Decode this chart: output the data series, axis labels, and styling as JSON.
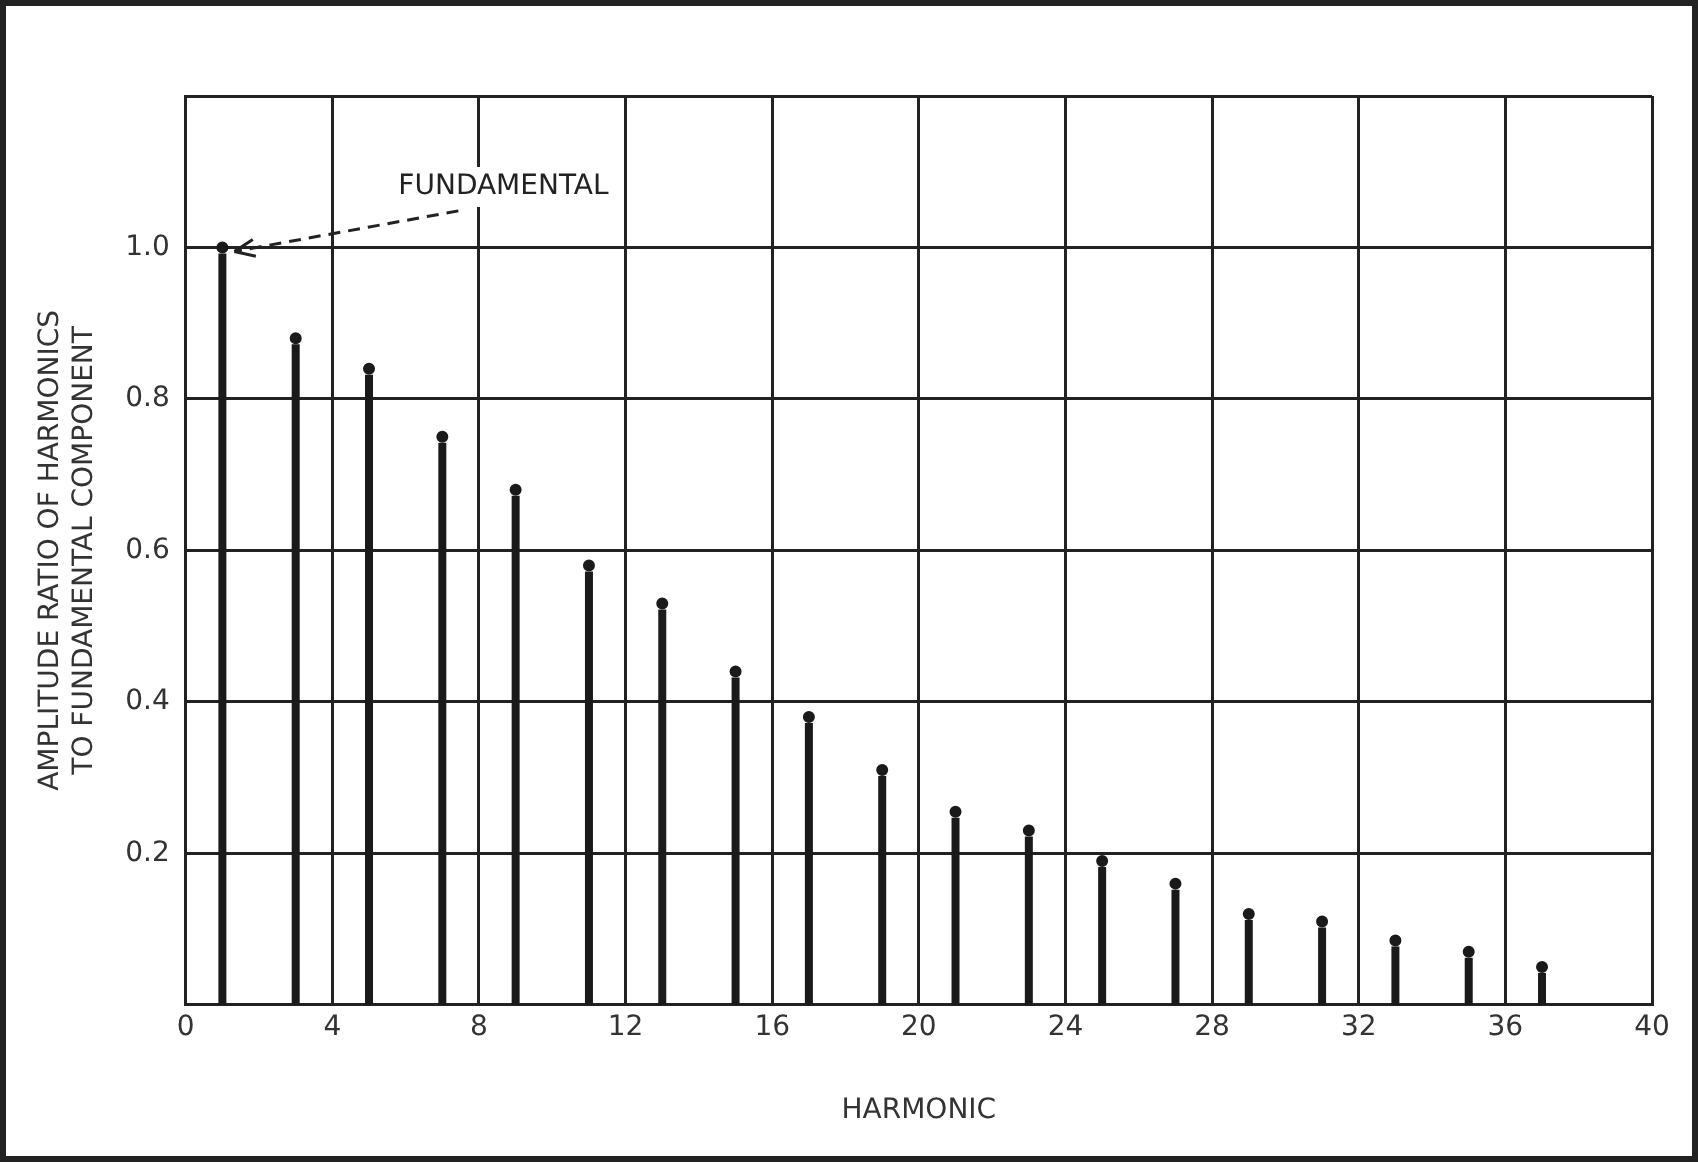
{
  "chart_data": {
    "type": "lollipop",
    "xlabel": "HARMONIC",
    "ylabel": "AMPLITUDE RATIO OF HARMONICS\nTO FUNDAMENTAL COMPONENT",
    "x": [
      1,
      3,
      5,
      7,
      9,
      11,
      13,
      15,
      17,
      19,
      21,
      23,
      25,
      27,
      29,
      31,
      33,
      35,
      37
    ],
    "values": [
      1.0,
      0.88,
      0.84,
      0.75,
      0.68,
      0.58,
      0.53,
      0.44,
      0.38,
      0.31,
      0.255,
      0.23,
      0.19,
      0.16,
      0.12,
      0.11,
      0.085,
      0.07,
      0.05
    ],
    "color": "#1a1a1a",
    "marker": "circle",
    "xlim": [
      0,
      40
    ],
    "xticks": [
      0,
      4,
      8,
      12,
      16,
      20,
      24,
      28,
      32,
      36,
      40
    ],
    "ylim": [
      0,
      1.2
    ],
    "yticks": [
      {
        "value": 0,
        "label": null
      },
      0.2,
      0.4,
      0.6,
      0.8,
      {
        "value": 1,
        "label": "1.0"
      },
      {
        "value": 1.2,
        "label": null
      }
    ],
    "grid": true,
    "legend": false,
    "annotations": [
      {
        "text": "FUNDAMENTAL",
        "x": 1,
        "y": 1.0
      }
    ]
  }
}
